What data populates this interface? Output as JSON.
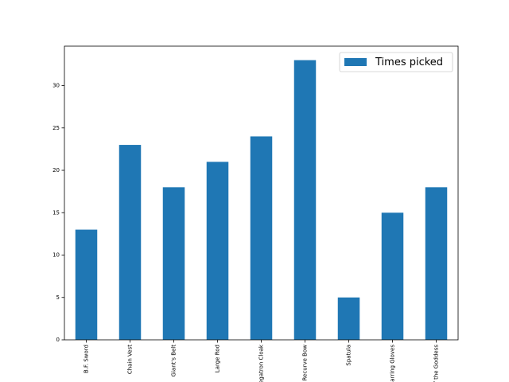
{
  "chart_data": {
    "type": "bar",
    "categories": [
      "B.F. Sword",
      "Chain Vest",
      "Giant's Belt",
      "Large Rod",
      "Negatron Cloak",
      "Recurve Bow",
      "Spatula",
      "Sparring Gloves",
      "Tear of the Goddess"
    ],
    "series": [
      {
        "name": "Times picked",
        "color": "#1f77b4",
        "values": [
          13,
          23,
          18,
          21,
          24,
          33,
          5,
          15,
          18
        ]
      }
    ],
    "ylim": [
      0,
      34.65
    ],
    "yticks": [
      0,
      5,
      10,
      15,
      20,
      25,
      30
    ],
    "legend": "upper right"
  }
}
